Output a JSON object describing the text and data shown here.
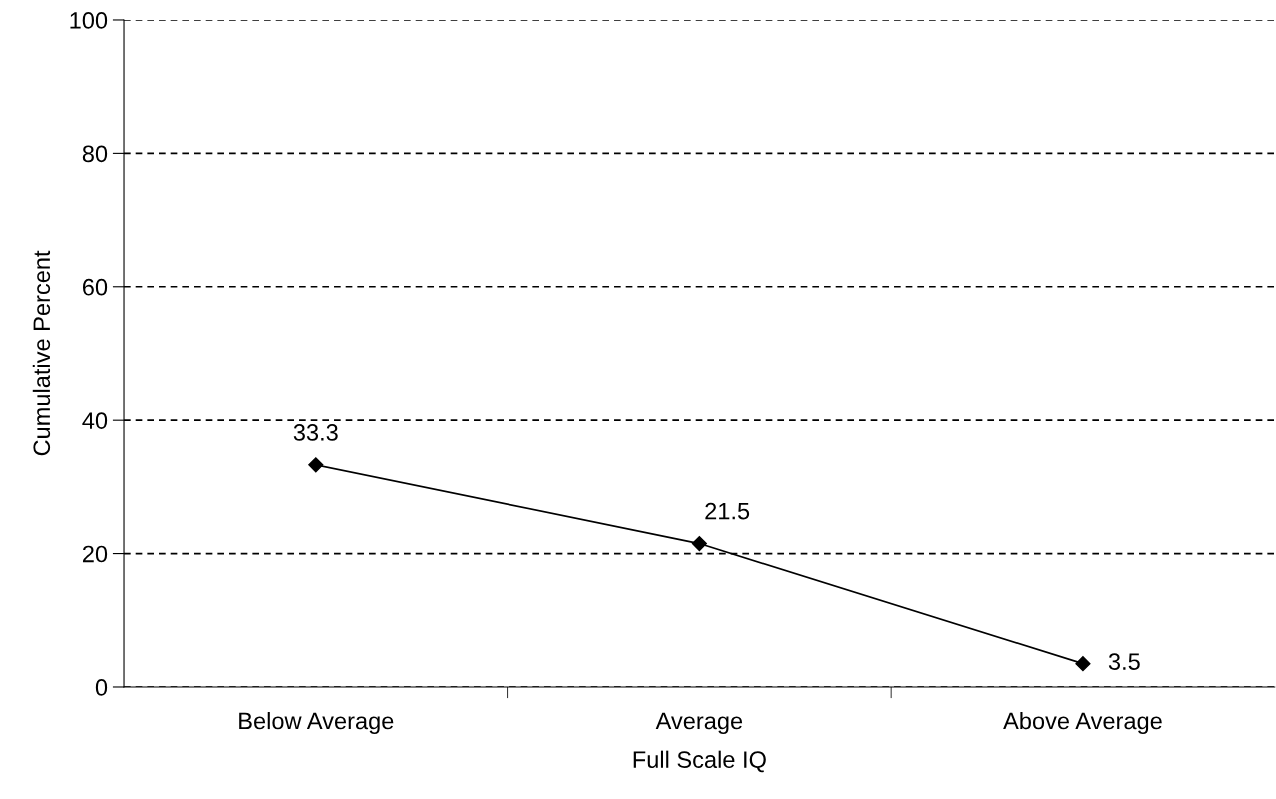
{
  "chart_data": {
    "type": "line",
    "xlabel": "Full Scale IQ",
    "ylabel": "Cumulative Percent",
    "categories": [
      "Below Average",
      "Average",
      "Above Average"
    ],
    "values": [
      33.3,
      21.5,
      3.5
    ],
    "color": "#000000",
    "marker": "diamond",
    "line_style": "solid",
    "ylim": [
      0,
      100
    ],
    "yticks": [
      0,
      20,
      40,
      60,
      80,
      100
    ],
    "grid": "y",
    "data_labels": true
  }
}
